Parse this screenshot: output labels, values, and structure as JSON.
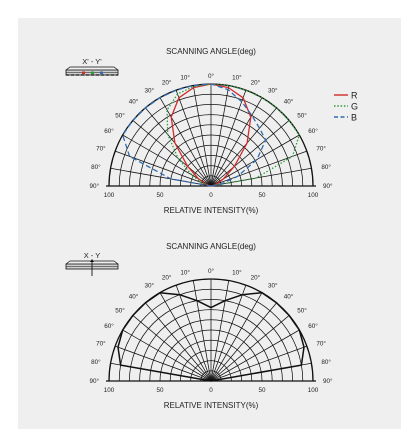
{
  "chart_data": [
    {
      "type": "polar-radiation",
      "title": "SCANNING ANGLE(deg)",
      "xlabel": "RELATIVE INTENSITY(%)",
      "angle_ticks_left": [
        "10°",
        "20°",
        "30°",
        "40°",
        "50°",
        "60°",
        "70°",
        "80°",
        "90°"
      ],
      "angle_ticks_right": [
        "0°",
        "10°",
        "20°",
        "30°",
        "40°",
        "50°",
        "60°",
        "70°",
        "80°",
        "90°"
      ],
      "intensity_ticks": [
        "100",
        "50",
        "0",
        "50",
        "100"
      ],
      "inset_label": "X' - Y'",
      "legend": [
        {
          "name": "R",
          "color": "#d12a2a",
          "dash": "solid"
        },
        {
          "name": "G",
          "color": "#2f9a3c",
          "dash": "dotted"
        },
        {
          "name": "B",
          "color": "#2d6cb5",
          "dash": "dashed"
        }
      ],
      "series": [
        {
          "name": "R",
          "angle_deg": [
            -90,
            -80,
            -70,
            -60,
            -50,
            -40,
            -30,
            -20,
            -10,
            0,
            10,
            20,
            30,
            40,
            50,
            60,
            70,
            80,
            90
          ],
          "intensity": [
            0,
            2,
            6,
            14,
            30,
            55,
            78,
            92,
            98,
            100,
            98,
            92,
            78,
            55,
            30,
            14,
            6,
            2,
            0
          ]
        },
        {
          "name": "G",
          "angle_deg": [
            -90,
            -80,
            -70,
            -60,
            -50,
            -40,
            -30,
            -20,
            -10,
            0,
            10,
            20,
            30,
            40,
            50,
            60,
            70,
            80,
            90
          ],
          "intensity": [
            0,
            3,
            10,
            22,
            42,
            66,
            86,
            96,
            99,
            100,
            100,
            100,
            100,
            100,
            100,
            100,
            85,
            45,
            0
          ]
        },
        {
          "name": "B",
          "angle_deg": [
            -90,
            -80,
            -70,
            -60,
            -50,
            -40,
            -30,
            -20,
            -10,
            0,
            10,
            20,
            30,
            40,
            50,
            60,
            70,
            80,
            90
          ],
          "intensity": [
            0,
            40,
            85,
            100,
            100,
            100,
            100,
            100,
            100,
            100,
            96,
            88,
            80,
            74,
            70,
            52,
            28,
            10,
            0
          ]
        }
      ]
    },
    {
      "type": "polar-radiation",
      "title": "SCANNING ANGLE(deg)",
      "xlabel": "RELATIVE INTENSITY(%)",
      "angle_ticks_left": [
        "10°",
        "20°",
        "30°",
        "40°",
        "50°",
        "60°",
        "70°",
        "80°",
        "90°"
      ],
      "angle_ticks_right": [
        "0°",
        "10°",
        "20°",
        "30°",
        "40°",
        "50°",
        "60°",
        "70°",
        "80°",
        "90°"
      ],
      "intensity_ticks": [
        "100",
        "50",
        "0",
        "50",
        "100"
      ],
      "inset_label": "X - Y",
      "series": [
        {
          "name": "",
          "color": "#111111",
          "angle_deg": [
            -90,
            -80,
            -70,
            -60,
            -50,
            -40,
            -30,
            -20,
            -10,
            0,
            10,
            20,
            30,
            40,
            50,
            60,
            70,
            80,
            90
          ],
          "intensity": [
            0,
            90,
            97,
            100,
            100,
            100,
            100,
            90,
            80,
            72,
            80,
            90,
            100,
            100,
            100,
            100,
            97,
            90,
            0
          ]
        }
      ]
    }
  ]
}
